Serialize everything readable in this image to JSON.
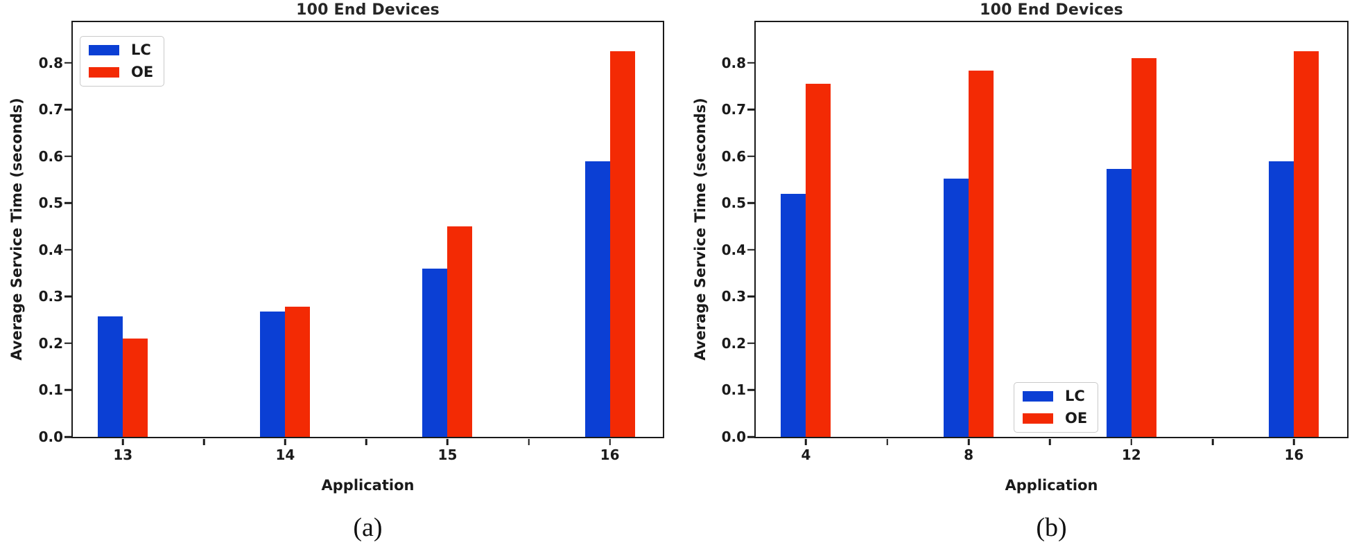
{
  "figure": {
    "background": "#ffffff"
  },
  "chart_data": [
    {
      "id": "a",
      "type": "bar",
      "title": "100 End Devices",
      "xlabel": "Application",
      "ylabel": "Average Service Time (seconds)",
      "caption": "(a)",
      "categories": [
        "13",
        "14",
        "15",
        "16"
      ],
      "series": [
        {
          "name": "LC",
          "color": "#0b3fd4",
          "values": [
            0.257,
            0.268,
            0.36,
            0.59
          ]
        },
        {
          "name": "OE",
          "color": "#f32a04",
          "values": [
            0.21,
            0.278,
            0.45,
            0.825
          ]
        }
      ],
      "ylim": [
        0,
        0.887
      ],
      "yticks": [
        "0.0",
        "0.1",
        "0.2",
        "0.3",
        "0.4",
        "0.5",
        "0.6",
        "0.7",
        "0.8"
      ],
      "grid": false,
      "legend_position": "upper-left"
    },
    {
      "id": "b",
      "type": "bar",
      "title": "100 End Devices",
      "xlabel": "Application",
      "ylabel": "Average Service Time (seconds)",
      "caption": "(b)",
      "categories": [
        "4",
        "8",
        "12",
        "16"
      ],
      "series": [
        {
          "name": "LC",
          "color": "#0b3fd4",
          "values": [
            0.52,
            0.553,
            0.573,
            0.59
          ]
        },
        {
          "name": "OE",
          "color": "#f32a04",
          "values": [
            0.755,
            0.783,
            0.81,
            0.825
          ]
        }
      ],
      "ylim": [
        0,
        0.887
      ],
      "yticks": [
        "0.0",
        "0.1",
        "0.2",
        "0.3",
        "0.4",
        "0.5",
        "0.6",
        "0.7",
        "0.8"
      ],
      "grid": false,
      "legend_position": "lower-center"
    }
  ]
}
